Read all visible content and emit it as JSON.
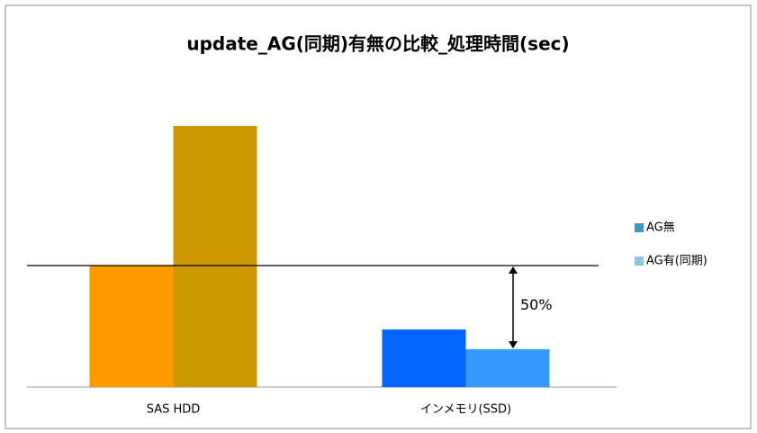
{
  "chart_data": {
    "type": "bar",
    "title": "update_AG(同期)有無の比較_処理時間(sec)",
    "categories": [
      "SAS HDD",
      "インメモリ(SSD)"
    ],
    "series": [
      {
        "name": "AG無",
        "color": "#3c9ac4",
        "bar_colors": [
          "#ff9900",
          "#0066ff"
        ],
        "values": [
          135,
          64
        ]
      },
      {
        "name": "AG有(同期)",
        "color": "#8cc4e6",
        "bar_colors": [
          "#cc9900",
          "#3399ff"
        ],
        "values": [
          290,
          42
        ]
      }
    ],
    "reference_line": 135,
    "annotation": "50%",
    "legend": "right"
  }
}
